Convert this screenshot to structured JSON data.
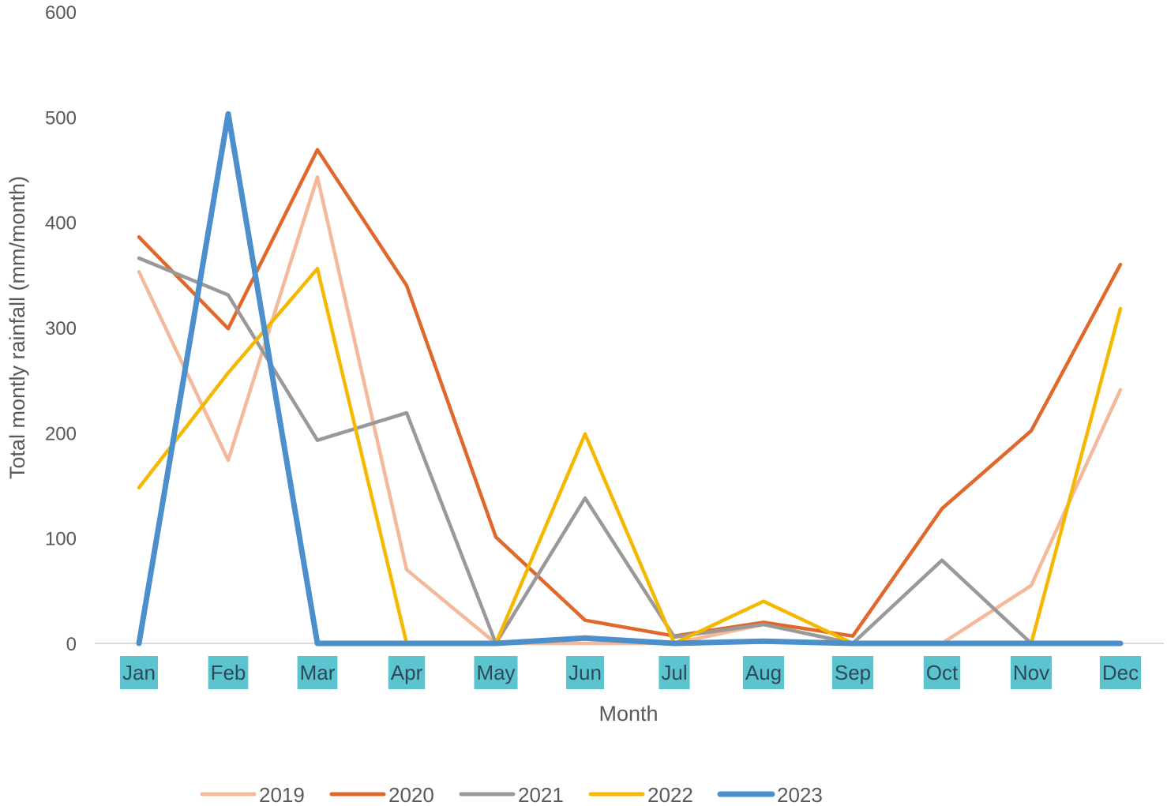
{
  "chart_data": {
    "type": "line",
    "xlabel": "Month",
    "ylabel": "Total montly rainfall (mm/month)",
    "ylim": [
      0,
      600
    ],
    "yticks": [
      0,
      100,
      200,
      300,
      400,
      500,
      600
    ],
    "categories": [
      "Jan",
      "Feb",
      "Mar",
      "Apr",
      "May",
      "Jun",
      "Jul",
      "Aug",
      "Sep",
      "Oct",
      "Nov",
      "Dec"
    ],
    "category_label_bg": "#5bc4cf",
    "grid": false,
    "legend_position": "bottom",
    "series": [
      {
        "name": "2019",
        "color": "#f4b89a",
        "values": [
          353,
          174,
          443,
          70,
          0,
          0,
          0,
          18,
          0,
          0,
          55,
          241
        ]
      },
      {
        "name": "2020",
        "color": "#e0682b",
        "values": [
          386,
          299,
          469,
          340,
          101,
          22,
          7,
          20,
          7,
          128,
          202,
          360
        ]
      },
      {
        "name": "2021",
        "color": "#999999",
        "values": [
          366,
          331,
          193,
          219,
          0,
          138,
          6,
          18,
          0,
          79,
          0,
          0
        ]
      },
      {
        "name": "2022",
        "color": "#f5b800",
        "values": [
          148,
          257,
          356,
          0,
          0,
          199,
          0,
          40,
          0,
          0,
          0,
          318
        ]
      },
      {
        "name": "2023",
        "color": "#4b90cc",
        "values": [
          0,
          503,
          0,
          0,
          0,
          5,
          0,
          2,
          0,
          0,
          0,
          0
        ]
      }
    ]
  }
}
